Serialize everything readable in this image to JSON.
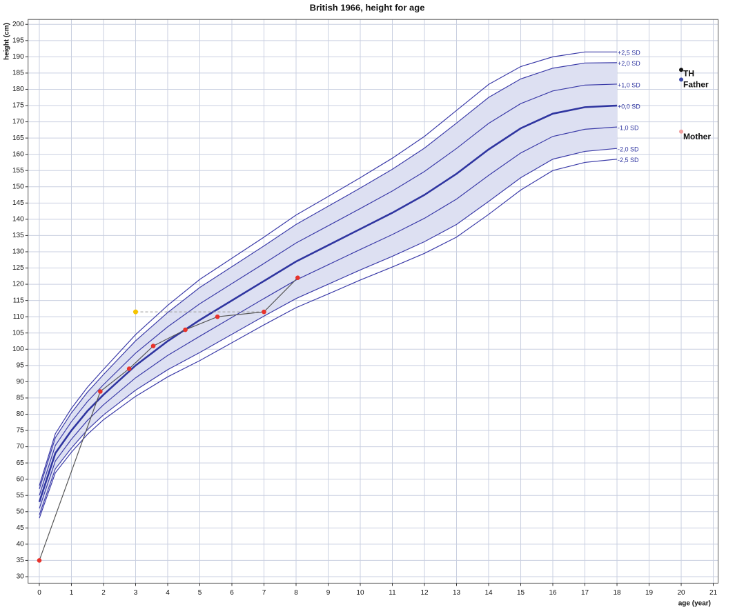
{
  "chart_data": {
    "type": "growth",
    "title": "British 1966, height for age",
    "x_label": "age (year)",
    "y_label": "height (cm)",
    "xlim": [
      -0.35,
      21.15
    ],
    "ylim": [
      28,
      201.5
    ],
    "xticks": [
      0,
      1,
      2,
      3,
      4,
      5,
      6,
      7,
      8,
      9,
      10,
      11,
      12,
      13,
      14,
      15,
      16,
      17,
      18,
      19,
      20,
      21
    ],
    "yticks": [
      30,
      35,
      40,
      45,
      50,
      55,
      60,
      65,
      70,
      75,
      80,
      85,
      90,
      95,
      100,
      105,
      110,
      115,
      120,
      125,
      130,
      135,
      140,
      145,
      150,
      155,
      160,
      165,
      170,
      175,
      180,
      185,
      190,
      195,
      200
    ],
    "grid": true,
    "band_color": "#dde0f2",
    "x": [
      0,
      0.5,
      1,
      1.5,
      2,
      3,
      4,
      5,
      6,
      7,
      8,
      9,
      10,
      11,
      12,
      13,
      14,
      15,
      16,
      17,
      18
    ],
    "series": [
      {
        "name": "+2,5 SD",
        "color": "#3b3ba8",
        "line_width": 1.2,
        "values": [
          58,
          74,
          81.8,
          88.3,
          93.8,
          104.5,
          113.5,
          121.5,
          128,
          134.5,
          141.3,
          147,
          152.8,
          158.8,
          165.5,
          173.5,
          181.5,
          187,
          190,
          191.5,
          191.5
        ]
      },
      {
        "name": "+2,0 SD",
        "color": "#3b3ba8",
        "line_width": 1.2,
        "values": [
          57,
          72.8,
          80.4,
          86.8,
          92.2,
          102.6,
          111.3,
          119,
          125.4,
          131.8,
          138.4,
          144,
          149.6,
          155.4,
          161.9,
          169.6,
          177.5,
          183.2,
          186.5,
          188.1,
          188.2
        ]
      },
      {
        "name": "+1,0 SD",
        "color": "#3b3ba8",
        "line_width": 1.2,
        "values": [
          55,
          70.4,
          77.7,
          83.9,
          89.1,
          98.8,
          106.9,
          114,
          120.2,
          126.4,
          132.7,
          138,
          143.3,
          148.7,
          154.7,
          161.8,
          169.5,
          175.6,
          179.5,
          181.3,
          181.6
        ]
      },
      {
        "name": "+0,0 SD",
        "color": "#2f35a0",
        "line_width": 2.6,
        "values": [
          53,
          68,
          75,
          81,
          86,
          95,
          102.5,
          109,
          115,
          121,
          127,
          132,
          137,
          142,
          147.5,
          154,
          161.5,
          168,
          172.5,
          174.5,
          175
        ]
      },
      {
        "name": "-1,0 SD",
        "color": "#3b3ba8",
        "line_width": 1.2,
        "values": [
          51,
          65.6,
          72.3,
          78.1,
          82.9,
          91.2,
          98.1,
          104,
          109.8,
          115.6,
          121.3,
          126,
          130.7,
          135.3,
          140.3,
          146.2,
          153.5,
          160.4,
          165.5,
          167.7,
          168.4
        ]
      },
      {
        "name": "-2,0 SD",
        "color": "#3b3ba8",
        "line_width": 1.2,
        "values": [
          49,
          63.2,
          69.6,
          75.2,
          79.8,
          87.4,
          93.7,
          99,
          104.6,
          110.2,
          115.6,
          120,
          124.4,
          128.6,
          133.1,
          138.4,
          145.5,
          152.8,
          158.5,
          160.9,
          161.8
        ]
      },
      {
        "name": "-2,5 SD",
        "color": "#3b3ba8",
        "line_width": 1.2,
        "values": [
          48,
          62,
          68.3,
          73.8,
          78.3,
          85.5,
          91.5,
          96.5,
          102,
          107.5,
          112.8,
          117,
          121.3,
          125.3,
          129.5,
          134.5,
          141.5,
          149,
          155,
          157.5,
          158.5
        ]
      }
    ],
    "patient": {
      "color": "#e8322b",
      "line_color": "#555555",
      "x": [
        0,
        1.9,
        2.8,
        3.55,
        4.55,
        5.55,
        7,
        8.05
      ],
      "y": [
        35,
        87,
        94,
        101,
        106,
        110,
        111.5,
        122
      ]
    },
    "bone_age": {
      "color": "#f5c400",
      "x": [
        3,
        7
      ],
      "y": [
        111.5,
        111.5
      ]
    },
    "parents": [
      {
        "name": "TH",
        "color": "#111111",
        "x": 20,
        "y": 186
      },
      {
        "name": "Father",
        "color": "#3a48a8",
        "x": 20,
        "y": 183
      },
      {
        "name": "Mother",
        "color": "#f0a0a0",
        "x": 20,
        "y": 167
      }
    ]
  }
}
